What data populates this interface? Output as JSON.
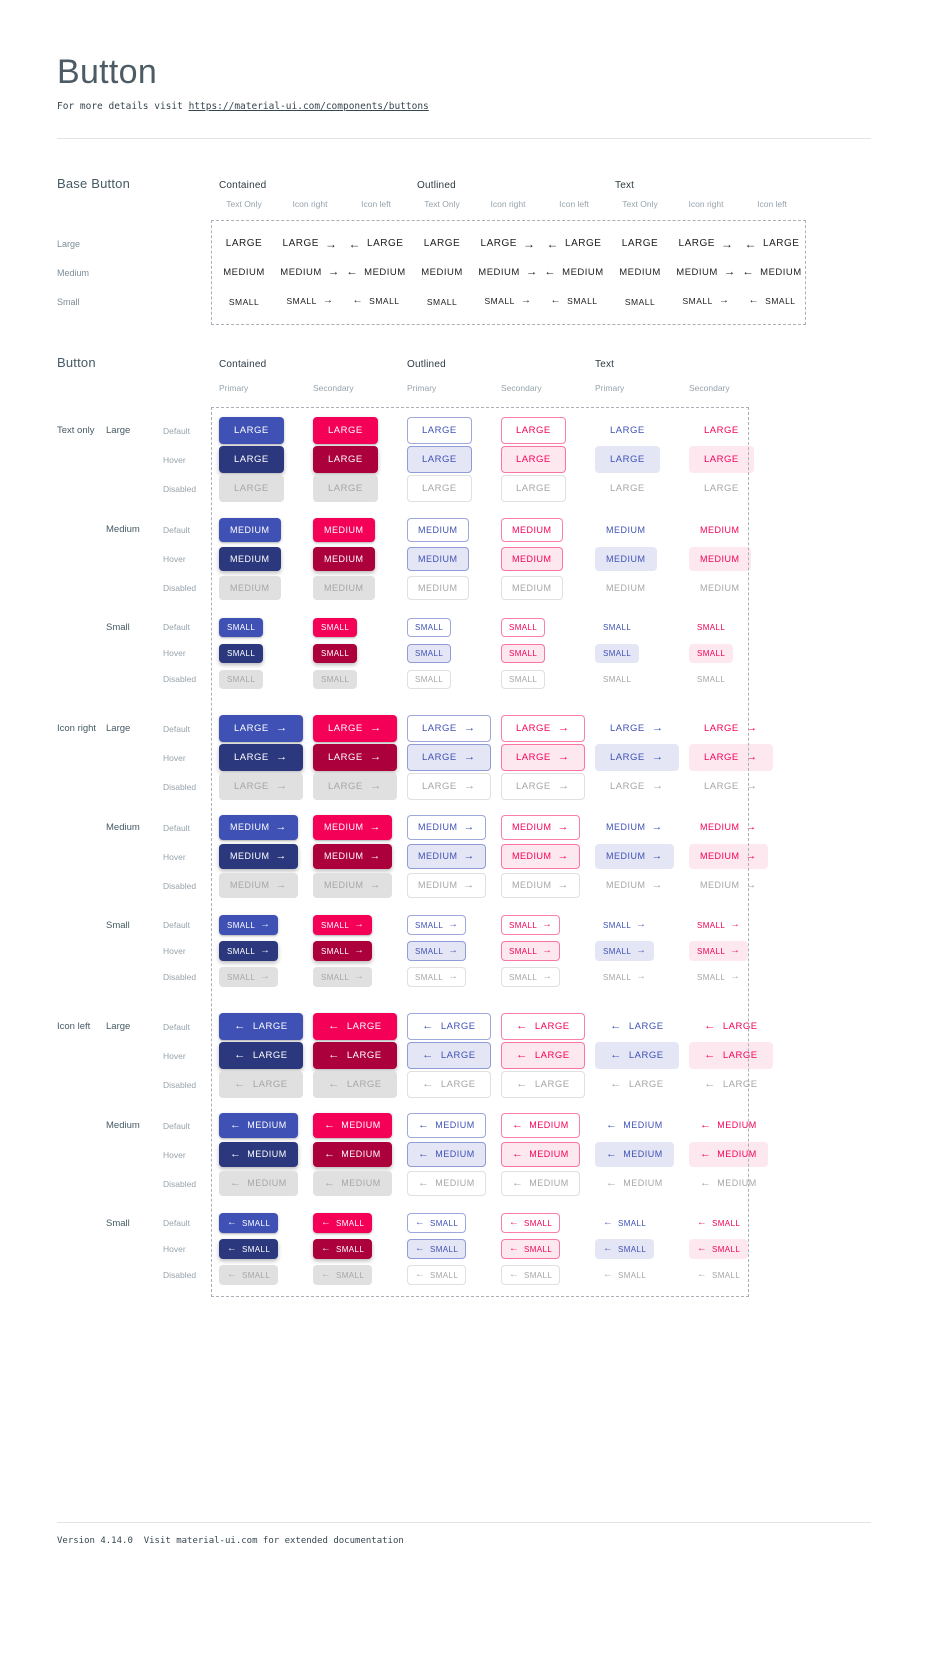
{
  "page": {
    "title": "Button",
    "subtitle_prefix": "For more details visit ",
    "subtitle_link": "https://material-ui.com/components/buttons"
  },
  "colors": {
    "primary": "#3f51b5",
    "primary_dark": "#2c387e",
    "secondary": "#f50057",
    "secondary_dark": "#ab003c",
    "disabled_bg": "#e0e0e0",
    "disabled_text": "#a6a6a6"
  },
  "icons": {
    "right": "→",
    "left": "←"
  },
  "base_section": {
    "title": "Base Button",
    "groups": [
      "Contained",
      "Outlined",
      "Text"
    ],
    "subcolumns": [
      "Text Only",
      "Icon right",
      "Icon left"
    ],
    "rows": [
      {
        "label": "Large",
        "text": "LARGE"
      },
      {
        "label": "Medium",
        "text": "MEDIUM"
      },
      {
        "label": "Small",
        "text": "SMALL"
      }
    ]
  },
  "button_section": {
    "title": "Button",
    "groups": [
      "Contained",
      "Outlined",
      "Text"
    ],
    "variants": [
      "Primary",
      "Secondary"
    ],
    "row_groups": [
      {
        "label": "Text only",
        "icon": "none"
      },
      {
        "label": "Icon right",
        "icon": "right"
      },
      {
        "label": "Icon left",
        "icon": "left"
      }
    ],
    "sizes": [
      {
        "label": "Large",
        "text": "LARGE"
      },
      {
        "label": "Medium",
        "text": "MEDIUM"
      },
      {
        "label": "Small",
        "text": "SMALL"
      }
    ],
    "states": [
      "Default",
      "Hover",
      "Disabled"
    ]
  },
  "footer": {
    "version": "Version 4.14.0",
    "note": "Visit material-ui.com for extended documentation"
  }
}
